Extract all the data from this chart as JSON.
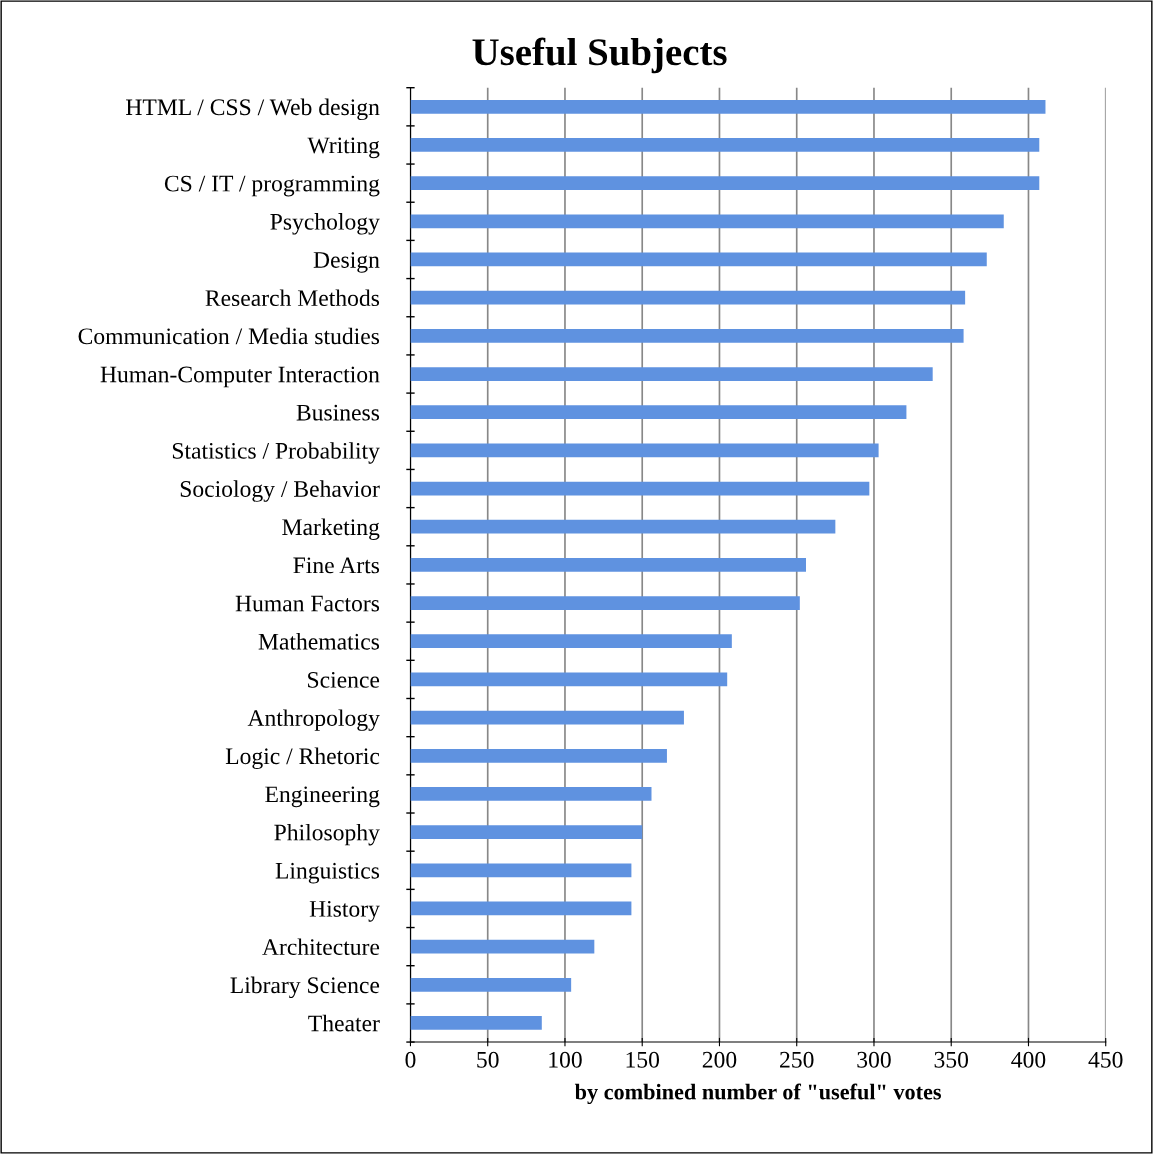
{
  "chart_data": {
    "type": "bar",
    "orientation": "horizontal",
    "title": "Useful Subjects",
    "xlabel": "by combined number of \"useful\" votes",
    "categories": [
      "HTML / CSS / Web design",
      "Writing",
      "CS / IT / programming",
      "Psychology",
      "Design",
      "Research Methods",
      "Communication / Media studies",
      "Human-Computer Interaction",
      "Business",
      "Statistics / Probability",
      "Sociology / Behavior",
      "Marketing",
      "Fine Arts",
      "Human Factors",
      "Mathematics",
      "Science",
      "Anthropology",
      "Logic / Rhetoric",
      "Engineering",
      "Philosophy",
      "Linguistics",
      "History",
      "Architecture",
      "Library Science",
      "Theater"
    ],
    "values": [
      411,
      407,
      407,
      384,
      373,
      359,
      358,
      338,
      321,
      303,
      297,
      275,
      256,
      252,
      208,
      205,
      177,
      166,
      156,
      150,
      143,
      143,
      119,
      104,
      85
    ],
    "color": "#5f92e0",
    "xlim": [
      0,
      450
    ],
    "xticks": [
      0,
      50,
      100,
      150,
      200,
      250,
      300,
      350,
      400,
      450
    ],
    "grid": "x"
  }
}
